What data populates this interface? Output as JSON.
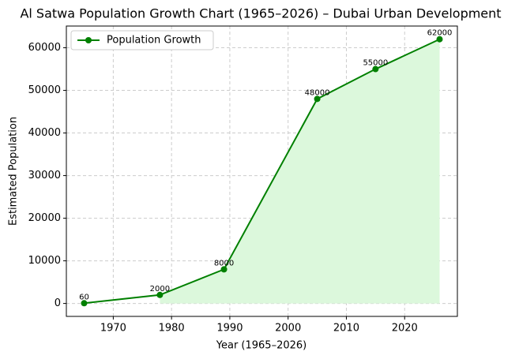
{
  "chart_data": {
    "type": "line",
    "title": "Al Satwa Population Growth Chart (1965–2026) – Dubai Urban Development",
    "x_label": "Year (1965–2026)",
    "y_label": "Estimated Population",
    "x": [
      1965,
      1978,
      1989,
      2005,
      2015,
      2026
    ],
    "series": [
      {
        "name": "Population Growth",
        "color": "#008000",
        "fill": "#dcf8dc",
        "values": [
          60,
          2000,
          8000,
          48000,
          55000,
          62000
        ]
      }
    ],
    "fill_from_index": 1,
    "xlim": [
      1961.95,
      2029.05
    ],
    "xticks": [
      1970,
      1980,
      1990,
      2000,
      2010,
      2020
    ],
    "ylim": [
      -3037,
      65097
    ],
    "yticks": [
      0,
      10000,
      20000,
      30000,
      40000,
      50000,
      60000
    ],
    "grid": true,
    "legend": "upper-left"
  }
}
